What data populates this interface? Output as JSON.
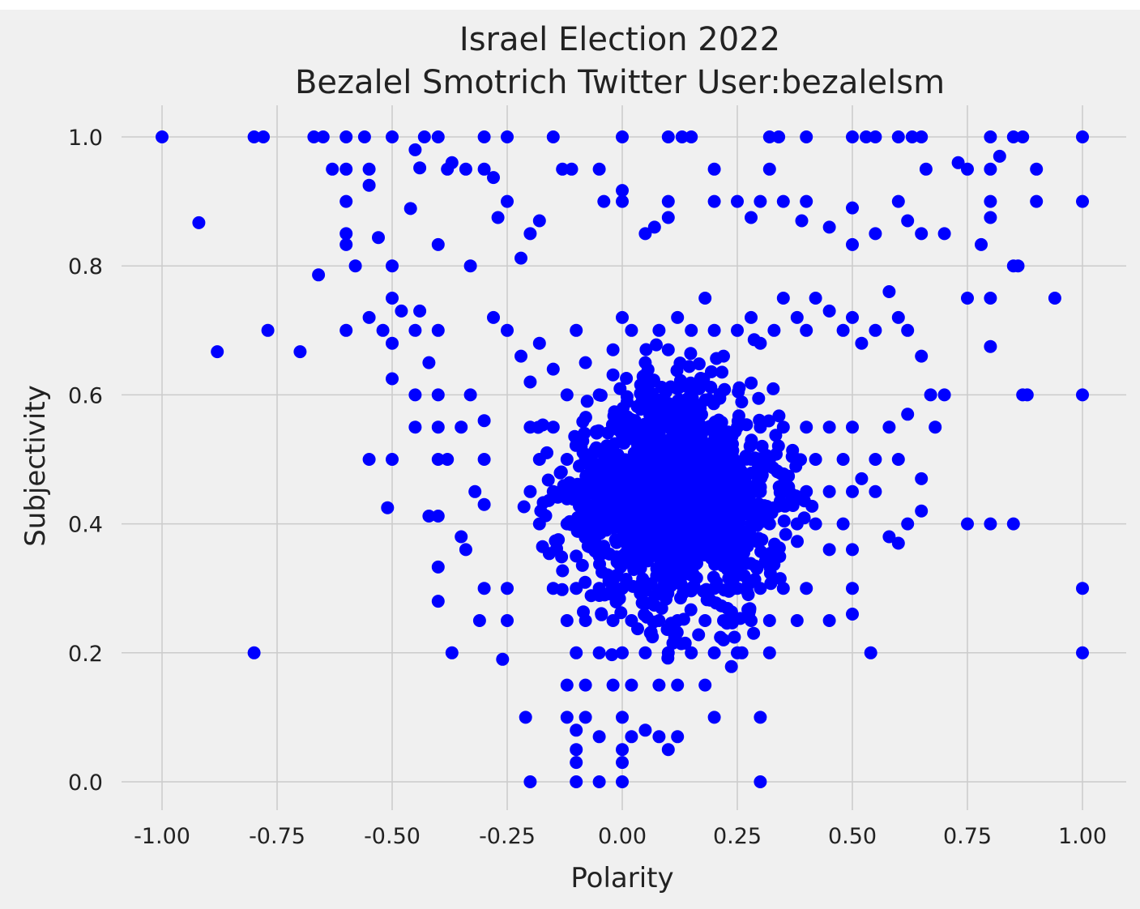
{
  "colors": {
    "background": "#f0f0f0",
    "grid": "#cbcbcb",
    "marker": "#0000ff",
    "text": "#222222"
  },
  "chart_data": {
    "type": "scatter",
    "title_line1": "Israel Election 2022",
    "title_line2": "Bezalel Smotrich Twitter User:bezalelsm",
    "xlabel": "Polarity",
    "ylabel": "Subjectivity",
    "xlim": [
      -1.1,
      1.1
    ],
    "ylim": [
      -0.05,
      1.05
    ],
    "xticks": [
      "-1.00",
      "-0.75",
      "-0.50",
      "-0.25",
      "0.00",
      "0.25",
      "0.50",
      "0.75",
      "1.00"
    ],
    "yticks": [
      "0.0",
      "0.2",
      "0.4",
      "0.6",
      "0.8",
      "1.0"
    ],
    "grid": true,
    "marker_color": "#0000ff",
    "points": [
      [
        -1.0,
        1.0
      ],
      [
        -0.8,
        1.0
      ],
      [
        -0.78,
        1.0
      ],
      [
        -0.67,
        1.0
      ],
      [
        -0.65,
        1.0
      ],
      [
        -0.6,
        1.0
      ],
      [
        -0.56,
        1.0
      ],
      [
        -0.5,
        1.0
      ],
      [
        -0.43,
        1.0
      ],
      [
        -0.4,
        1.0
      ],
      [
        -0.3,
        1.0
      ],
      [
        -0.25,
        1.0
      ],
      [
        -0.15,
        1.0
      ],
      [
        0.0,
        1.0
      ],
      [
        0.1,
        1.0
      ],
      [
        0.13,
        1.0
      ],
      [
        0.15,
        1.0
      ],
      [
        0.32,
        1.0
      ],
      [
        0.34,
        1.0
      ],
      [
        0.4,
        1.0
      ],
      [
        0.5,
        1.0
      ],
      [
        0.53,
        1.0
      ],
      [
        0.55,
        1.0
      ],
      [
        0.6,
        1.0
      ],
      [
        0.63,
        1.0
      ],
      [
        0.65,
        1.0
      ],
      [
        0.8,
        1.0
      ],
      [
        0.85,
        1.0
      ],
      [
        0.87,
        1.0
      ],
      [
        1.0,
        1.0
      ],
      [
        -0.92,
        0.867
      ],
      [
        -0.88,
        0.667
      ],
      [
        -0.77,
        0.7
      ],
      [
        -0.7,
        0.667
      ],
      [
        -0.8,
        0.2
      ],
      [
        -0.66,
        0.786
      ],
      [
        -0.63,
        0.95
      ],
      [
        -0.6,
        0.95
      ],
      [
        -0.6,
        0.9
      ],
      [
        -0.6,
        0.85
      ],
      [
        -0.6,
        0.833
      ],
      [
        -0.58,
        0.8
      ],
      [
        -0.6,
        0.7
      ],
      [
        -0.55,
        0.95
      ],
      [
        -0.55,
        0.925
      ],
      [
        -0.53,
        0.844
      ],
      [
        -0.55,
        0.5
      ],
      [
        -0.5,
        0.5
      ],
      [
        -0.51,
        0.425
      ],
      [
        -0.45,
        0.98
      ],
      [
        -0.46,
        0.889
      ],
      [
        -0.44,
        0.952
      ],
      [
        -0.4,
        0.833
      ],
      [
        -0.38,
        0.95
      ],
      [
        -0.37,
        0.96
      ],
      [
        -0.34,
        0.95
      ],
      [
        -0.33,
        0.8
      ],
      [
        -0.3,
        0.95
      ],
      [
        -0.28,
        0.937
      ],
      [
        -0.27,
        0.875
      ],
      [
        -0.25,
        0.9
      ],
      [
        -0.22,
        0.812
      ],
      [
        -0.2,
        0.85
      ],
      [
        -0.18,
        0.87
      ],
      [
        -0.13,
        0.95
      ],
      [
        -0.11,
        0.95
      ],
      [
        -0.05,
        0.95
      ],
      [
        -0.04,
        0.9
      ],
      [
        0.0,
        0.917
      ],
      [
        0.0,
        0.9
      ],
      [
        0.05,
        0.85
      ],
      [
        0.07,
        0.86
      ],
      [
        0.1,
        0.875
      ],
      [
        0.1,
        0.9
      ],
      [
        0.2,
        0.95
      ],
      [
        0.2,
        0.9
      ],
      [
        0.25,
        0.9
      ],
      [
        0.28,
        0.875
      ],
      [
        0.3,
        0.9
      ],
      [
        0.32,
        0.95
      ],
      [
        0.35,
        0.9
      ],
      [
        0.4,
        0.9
      ],
      [
        0.39,
        0.87
      ],
      [
        0.45,
        0.86
      ],
      [
        0.5,
        0.89
      ],
      [
        0.5,
        0.833
      ],
      [
        0.55,
        0.85
      ],
      [
        0.6,
        0.9
      ],
      [
        0.62,
        0.87
      ],
      [
        0.65,
        0.85
      ],
      [
        0.7,
        0.85
      ],
      [
        0.66,
        0.95
      ],
      [
        0.75,
        0.95
      ],
      [
        0.8,
        0.95
      ],
      [
        0.82,
        0.97
      ],
      [
        0.8,
        0.9
      ],
      [
        0.8,
        0.875
      ],
      [
        0.9,
        0.95
      ],
      [
        0.9,
        0.9
      ],
      [
        1.0,
        0.9
      ],
      [
        0.73,
        0.96
      ],
      [
        0.78,
        0.833
      ],
      [
        0.85,
        0.8
      ],
      [
        0.86,
        0.8
      ],
      [
        0.94,
        0.75
      ],
      [
        0.8,
        0.75
      ],
      [
        0.75,
        0.75
      ],
      [
        0.8,
        0.675
      ],
      [
        0.87,
        0.6
      ],
      [
        0.88,
        0.6
      ],
      [
        1.0,
        0.6
      ],
      [
        0.75,
        0.4
      ],
      [
        0.8,
        0.4
      ],
      [
        0.85,
        0.4
      ],
      [
        1.0,
        0.3
      ],
      [
        1.0,
        0.2
      ],
      [
        0.54,
        0.2
      ],
      [
        0.3,
        0.1
      ],
      [
        0.3,
        0.0
      ],
      [
        -0.2,
        0.0
      ],
      [
        -0.1,
        0.0
      ],
      [
        -0.05,
        0.0
      ],
      [
        0.0,
        0.0
      ],
      [
        -0.21,
        0.1
      ],
      [
        0.2,
        0.1
      ],
      [
        -0.55,
        0.72
      ],
      [
        -0.52,
        0.7
      ],
      [
        -0.5,
        0.8
      ],
      [
        -0.5,
        0.75
      ],
      [
        -0.5,
        0.68
      ],
      [
        -0.5,
        0.625
      ],
      [
        -0.48,
        0.73
      ],
      [
        -0.45,
        0.7
      ],
      [
        -0.44,
        0.73
      ],
      [
        -0.45,
        0.6
      ],
      [
        -0.45,
        0.55
      ],
      [
        -0.42,
        0.65
      ],
      [
        -0.4,
        0.7
      ],
      [
        -0.4,
        0.6
      ],
      [
        -0.4,
        0.55
      ],
      [
        -0.4,
        0.5
      ],
      [
        -0.4,
        0.412
      ],
      [
        -0.42,
        0.412
      ],
      [
        -0.4,
        0.333
      ],
      [
        -0.38,
        0.5
      ],
      [
        -0.35,
        0.55
      ],
      [
        -0.33,
        0.6
      ],
      [
        -0.3,
        0.56
      ],
      [
        -0.3,
        0.5
      ],
      [
        -0.32,
        0.45
      ],
      [
        -0.3,
        0.43
      ],
      [
        -0.35,
        0.38
      ],
      [
        -0.34,
        0.36
      ],
      [
        -0.3,
        0.3
      ],
      [
        -0.31,
        0.25
      ],
      [
        -0.4,
        0.28
      ],
      [
        -0.37,
        0.2
      ],
      [
        -0.26,
        0.19
      ],
      [
        -0.25,
        0.25
      ],
      [
        -0.25,
        0.3
      ],
      [
        -0.28,
        0.72
      ],
      [
        -0.25,
        0.7
      ],
      [
        -0.22,
        0.66
      ],
      [
        -0.2,
        0.62
      ],
      [
        -0.18,
        0.68
      ],
      [
        -0.15,
        0.64
      ],
      [
        -0.12,
        0.6
      ],
      [
        -0.1,
        0.7
      ],
      [
        -0.08,
        0.65
      ],
      [
        -0.05,
        0.6
      ],
      [
        -0.02,
        0.67
      ],
      [
        0.0,
        0.72
      ],
      [
        0.02,
        0.7
      ],
      [
        0.05,
        0.65
      ],
      [
        0.08,
        0.7
      ],
      [
        0.1,
        0.67
      ],
      [
        0.12,
        0.72
      ],
      [
        0.15,
        0.7
      ],
      [
        0.18,
        0.75
      ],
      [
        0.2,
        0.7
      ],
      [
        0.22,
        0.66
      ],
      [
        0.25,
        0.7
      ],
      [
        0.28,
        0.72
      ],
      [
        0.3,
        0.68
      ],
      [
        0.33,
        0.7
      ],
      [
        0.35,
        0.75
      ],
      [
        0.38,
        0.72
      ],
      [
        0.4,
        0.7
      ],
      [
        0.42,
        0.75
      ],
      [
        0.45,
        0.73
      ],
      [
        0.48,
        0.7
      ],
      [
        0.5,
        0.72
      ],
      [
        0.52,
        0.68
      ],
      [
        0.55,
        0.7
      ],
      [
        0.58,
        0.76
      ],
      [
        0.6,
        0.72
      ],
      [
        0.62,
        0.7
      ],
      [
        0.65,
        0.66
      ],
      [
        0.67,
        0.6
      ],
      [
        0.7,
        0.6
      ],
      [
        0.68,
        0.55
      ],
      [
        0.62,
        0.57
      ],
      [
        0.6,
        0.5
      ],
      [
        0.58,
        0.55
      ],
      [
        0.55,
        0.5
      ],
      [
        0.52,
        0.47
      ],
      [
        0.55,
        0.45
      ],
      [
        0.58,
        0.38
      ],
      [
        0.6,
        0.37
      ],
      [
        0.62,
        0.4
      ],
      [
        0.65,
        0.42
      ],
      [
        0.65,
        0.47
      ],
      [
        -0.2,
        0.55
      ],
      [
        -0.18,
        0.5
      ],
      [
        -0.15,
        0.55
      ],
      [
        -0.12,
        0.5
      ],
      [
        -0.1,
        0.45
      ],
      [
        -0.08,
        0.5
      ],
      [
        -0.05,
        0.45
      ],
      [
        -0.02,
        0.5
      ],
      [
        0.0,
        0.45
      ],
      [
        0.02,
        0.5
      ],
      [
        0.05,
        0.45
      ],
      [
        0.08,
        0.5
      ],
      [
        0.1,
        0.55
      ],
      [
        0.12,
        0.5
      ],
      [
        0.15,
        0.55
      ],
      [
        0.18,
        0.5
      ],
      [
        0.2,
        0.55
      ],
      [
        0.22,
        0.5
      ],
      [
        0.25,
        0.55
      ],
      [
        0.28,
        0.5
      ],
      [
        0.3,
        0.55
      ],
      [
        0.32,
        0.5
      ],
      [
        0.35,
        0.55
      ],
      [
        0.38,
        0.5
      ],
      [
        0.4,
        0.55
      ],
      [
        0.42,
        0.5
      ],
      [
        0.45,
        0.55
      ],
      [
        0.48,
        0.5
      ],
      [
        0.5,
        0.55
      ],
      [
        -0.2,
        0.45
      ],
      [
        -0.18,
        0.4
      ],
      [
        -0.15,
        0.45
      ],
      [
        -0.12,
        0.4
      ],
      [
        -0.1,
        0.35
      ],
      [
        -0.08,
        0.4
      ],
      [
        -0.05,
        0.35
      ],
      [
        -0.02,
        0.4
      ],
      [
        0.0,
        0.35
      ],
      [
        0.02,
        0.4
      ],
      [
        0.05,
        0.35
      ],
      [
        0.08,
        0.4
      ],
      [
        0.1,
        0.45
      ],
      [
        0.12,
        0.4
      ],
      [
        0.15,
        0.45
      ],
      [
        0.18,
        0.4
      ],
      [
        0.2,
        0.45
      ],
      [
        0.22,
        0.4
      ],
      [
        0.25,
        0.45
      ],
      [
        0.28,
        0.4
      ],
      [
        0.3,
        0.45
      ],
      [
        0.32,
        0.4
      ],
      [
        0.35,
        0.45
      ],
      [
        0.38,
        0.4
      ],
      [
        0.4,
        0.45
      ],
      [
        0.42,
        0.4
      ],
      [
        0.45,
        0.45
      ],
      [
        0.48,
        0.4
      ],
      [
        0.5,
        0.45
      ],
      [
        -0.15,
        0.3
      ],
      [
        -0.12,
        0.25
      ],
      [
        -0.1,
        0.3
      ],
      [
        -0.08,
        0.25
      ],
      [
        -0.05,
        0.3
      ],
      [
        -0.02,
        0.25
      ],
      [
        0.0,
        0.3
      ],
      [
        0.02,
        0.25
      ],
      [
        0.05,
        0.3
      ],
      [
        0.08,
        0.25
      ],
      [
        0.1,
        0.3
      ],
      [
        0.12,
        0.25
      ],
      [
        0.15,
        0.3
      ],
      [
        0.18,
        0.25
      ],
      [
        0.2,
        0.3
      ],
      [
        0.22,
        0.25
      ],
      [
        0.25,
        0.3
      ],
      [
        0.28,
        0.25
      ],
      [
        0.3,
        0.3
      ],
      [
        0.32,
        0.25
      ],
      [
        0.35,
        0.3
      ],
      [
        0.38,
        0.25
      ],
      [
        0.4,
        0.3
      ],
      [
        0.45,
        0.25
      ],
      [
        0.5,
        0.3
      ],
      [
        0.5,
        0.26
      ],
      [
        0.45,
        0.36
      ],
      [
        0.5,
        0.36
      ],
      [
        -0.12,
        0.15
      ],
      [
        -0.1,
        0.2
      ],
      [
        -0.08,
        0.15
      ],
      [
        -0.05,
        0.2
      ],
      [
        -0.02,
        0.15
      ],
      [
        0.0,
        0.2
      ],
      [
        0.02,
        0.15
      ],
      [
        0.05,
        0.2
      ],
      [
        0.08,
        0.15
      ],
      [
        0.1,
        0.2
      ],
      [
        0.12,
        0.15
      ],
      [
        0.15,
        0.2
      ],
      [
        0.18,
        0.15
      ],
      [
        0.2,
        0.2
      ],
      [
        0.22,
        0.22
      ],
      [
        0.25,
        0.2
      ],
      [
        0.26,
        0.2
      ],
      [
        0.32,
        0.2
      ],
      [
        -0.12,
        0.1
      ],
      [
        -0.1,
        0.08
      ],
      [
        -0.08,
        0.1
      ],
      [
        -0.05,
        0.07
      ],
      [
        0.0,
        0.1
      ],
      [
        0.02,
        0.07
      ],
      [
        0.05,
        0.08
      ],
      [
        0.08,
        0.07
      ],
      [
        0.1,
        0.05
      ],
      [
        0.12,
        0.07
      ],
      [
        0.0,
        0.05
      ],
      [
        0.0,
        0.03
      ],
      [
        -0.1,
        0.03
      ],
      [
        -0.1,
        0.05
      ]
    ],
    "cluster_seed": 7
  }
}
